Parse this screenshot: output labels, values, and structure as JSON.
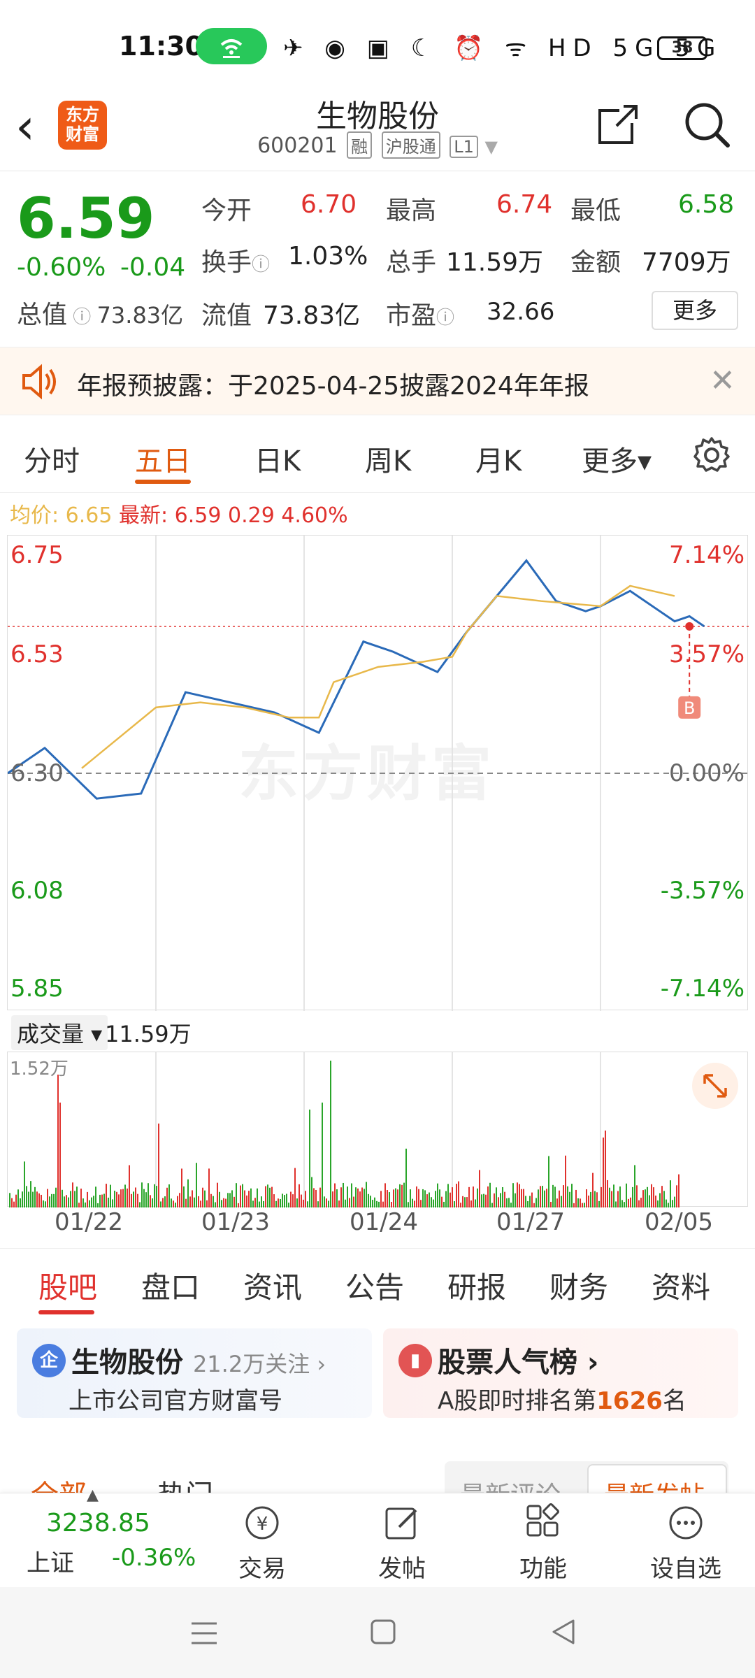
{
  "status_bar": {
    "time": "11:30",
    "battery": "38",
    "icons_text": "✈ ◉ ▣    ☾ ⏰ ᯤ HD 5G 5G"
  },
  "header": {
    "back_label": "‹",
    "logo_line1": "东方",
    "logo_line2": "财富",
    "title": "生物股份",
    "code": "600201",
    "tag1": "融",
    "tag2": "沪股通",
    "tag3": "L1"
  },
  "quote": {
    "price": "6.59",
    "change_pct": "-0.60%",
    "change": "-0.04",
    "total_value_label": "总值",
    "total_value": "73.83亿",
    "rows": [
      [
        {
          "label": "今开",
          "value": "6.70",
          "color": "red"
        },
        {
          "label": "最高",
          "value": "6.74",
          "color": "red"
        },
        {
          "label": "最低",
          "value": "6.58",
          "color": "green"
        }
      ],
      [
        {
          "label": "换手",
          "value": "1.03%",
          "color": "dark"
        },
        {
          "label": "总手",
          "value": "11.59万",
          "color": "dark"
        },
        {
          "label": "金额",
          "value": "7709万",
          "color": "dark"
        }
      ],
      [
        {
          "label": "流值",
          "value": "73.83亿",
          "color": "dark"
        },
        {
          "label": "市盈",
          "value": "32.66",
          "color": "dark"
        }
      ]
    ],
    "more_button": "更多"
  },
  "notice": {
    "text": "年报预披露：于2025-04-25披露2024年年报",
    "close": "✕"
  },
  "chart_tabs": {
    "items": [
      "分时",
      "五日",
      "日K",
      "周K",
      "月K",
      "更多▾"
    ],
    "active": "五日"
  },
  "avg_line": {
    "avg_label": "均价:",
    "avg_value": "6.65",
    "latest_label": "最新:",
    "latest_value": "6.59",
    "chg": "0.29",
    "pct": "4.60%"
  },
  "chart_data": {
    "type": "line",
    "y_left_ticks": [
      "6.75",
      "6.53",
      "6.30",
      "6.08",
      "5.85"
    ],
    "y_right_ticks": [
      "7.14%",
      "3.57%",
      "0.00%",
      "-3.57%",
      "-7.14%"
    ],
    "ylim": [
      5.85,
      6.75
    ],
    "x_labels": [
      "01/22",
      "01/23",
      "01/24",
      "01/27",
      "02/05"
    ],
    "series": [
      {
        "name": "price",
        "color": "#2a6ab8",
        "x": [
          0,
          0.05,
          0.12,
          0.18,
          0.24,
          0.3,
          0.36,
          0.42,
          0.48,
          0.52,
          0.58,
          0.62,
          0.7,
          0.74,
          0.78,
          0.8,
          0.84,
          0.88,
          0.9,
          0.92,
          0.94
        ],
        "values": [
          6.3,
          6.35,
          6.25,
          6.26,
          6.46,
          6.44,
          6.42,
          6.38,
          6.56,
          6.54,
          6.5,
          6.58,
          6.72,
          6.64,
          6.62,
          6.63,
          6.66,
          6.62,
          6.6,
          6.61,
          6.59
        ]
      },
      {
        "name": "avg",
        "color": "#e8b84a",
        "x": [
          0.1,
          0.2,
          0.26,
          0.32,
          0.38,
          0.42,
          0.44,
          0.5,
          0.56,
          0.6,
          0.62,
          0.66,
          0.72,
          0.8,
          0.84,
          0.9
        ],
        "values": [
          6.31,
          6.43,
          6.44,
          6.43,
          6.41,
          6.41,
          6.48,
          6.51,
          6.52,
          6.53,
          6.58,
          6.65,
          6.64,
          6.63,
          6.67,
          6.65
        ]
      }
    ],
    "prev_close": 6.3,
    "marker": "B",
    "watermark": "东方财富"
  },
  "volume": {
    "selector": "成交量 ▾",
    "value": "11.59万",
    "max_label": "1.52万"
  },
  "bottom_tabs": {
    "items": [
      "股吧",
      "盘口",
      "资讯",
      "公告",
      "研报",
      "财务",
      "资料"
    ],
    "active": "股吧"
  },
  "cards": {
    "card1": {
      "icon": "企",
      "title": "生物股份",
      "follow": "21.2万关注 ›",
      "sub": "上市公司官方财富号"
    },
    "card2": {
      "icon": "▮",
      "title": "股票人气榜 ›",
      "sub_pre": "A股即时排名第",
      "rank": "1626",
      "sub_post": "名"
    }
  },
  "filters": {
    "all": "全部",
    "hot": "热门",
    "latest_comment": "最新评论",
    "latest_post": "最新发帖"
  },
  "bottom_nav": {
    "index_value": "3238.85",
    "index_name": "上证",
    "index_change": "-0.36%",
    "items": [
      {
        "label": "交易"
      },
      {
        "label": "发帖"
      },
      {
        "label": "功能"
      },
      {
        "label": "设自选"
      }
    ]
  },
  "colors": {
    "accent": "#e05a10",
    "up": "#e0312d",
    "down": "#1a9a1a",
    "line": "#2a6ab8",
    "avg": "#e8b84a"
  }
}
